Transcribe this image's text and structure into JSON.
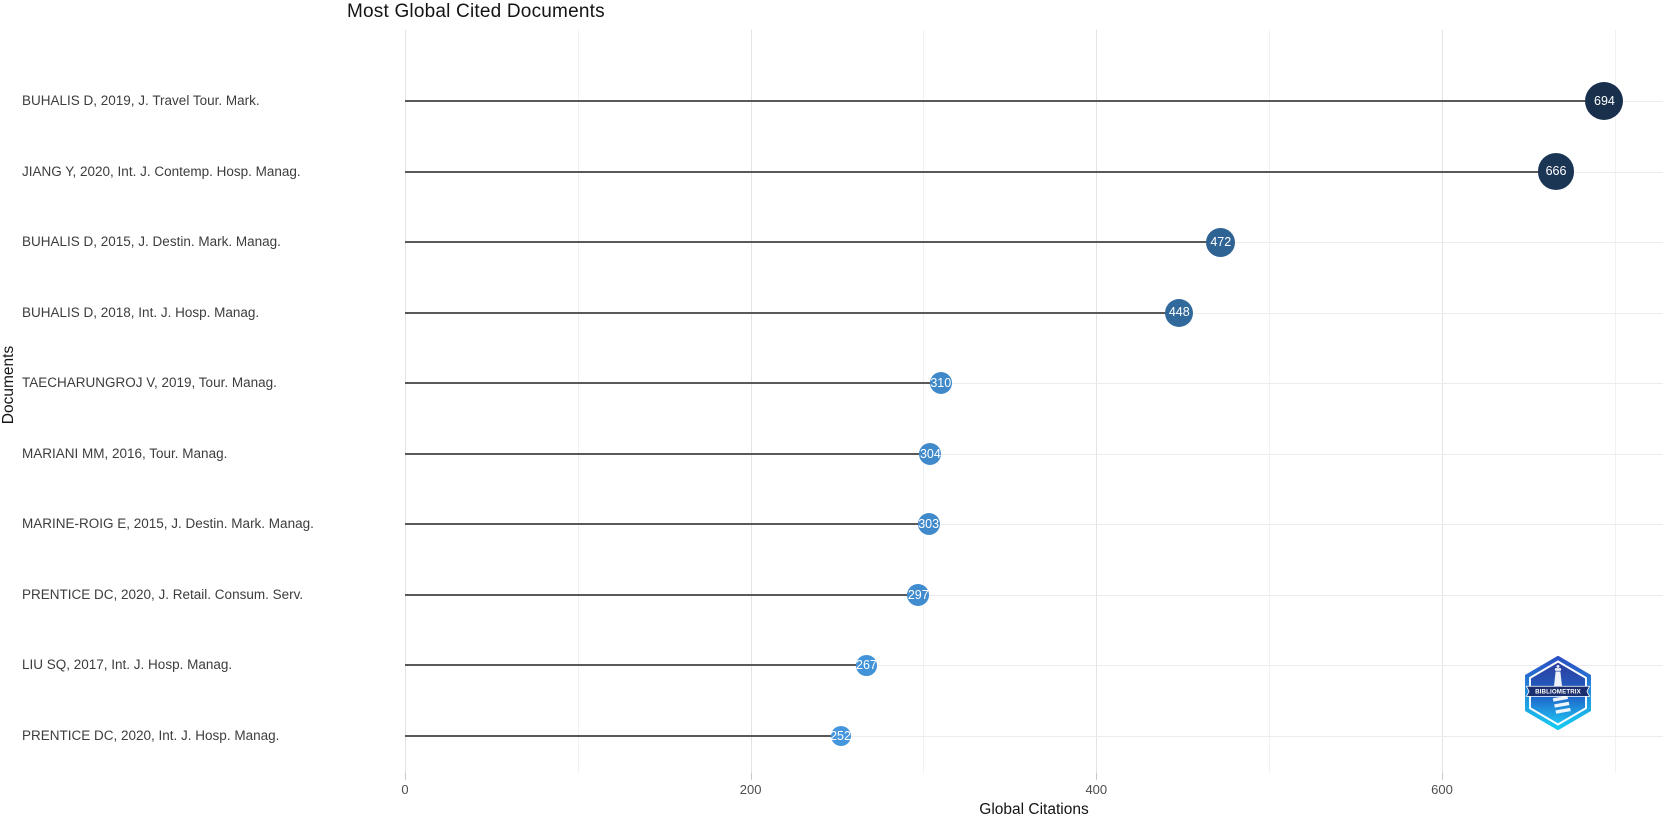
{
  "chart_data": {
    "type": "bar",
    "variant": "horizontal-lollipop",
    "orientation": "horizontal",
    "title": "Most Global Cited Documents",
    "xlabel": "Global Citations",
    "ylabel": "Documents",
    "categories": [
      "BUHALIS D, 2019, J. Travel Tour. Mark.",
      "JIANG Y, 2020, Int. J. Contemp. Hosp. Manag.",
      "BUHALIS D, 2015, J. Destin. Mark. Manag.",
      "BUHALIS D, 2018, Int. J. Hosp. Manag.",
      "TAECHARUNGROJ V, 2019, Tour. Manag.",
      "MARIANI MM, 2016, Tour. Manag.",
      "MARINE-ROIG E, 2015, J. Destin. Mark. Manag.",
      "PRENTICE DC, 2020, J. Retail. Consum. Serv.",
      "LIU SQ, 2017, Int. J. Hosp. Manag.",
      "PRENTICE DC, 2020, Int. J. Hosp. Manag."
    ],
    "values": [
      694,
      666,
      472,
      448,
      310,
      304,
      303,
      297,
      267,
      252
    ],
    "value_labels_shown": true,
    "xlim": [
      0,
      729
    ],
    "x_major_ticks": [
      0,
      200,
      400,
      600
    ],
    "x_minor_ticks": [
      100,
      300,
      500,
      700
    ],
    "grid": true,
    "legend": "none",
    "colors": {
      "dot_low": "#4596DD",
      "dot_high": "#18304B",
      "stem": "#595959",
      "grid_major": "#e3e3e3",
      "grid_minor": "#f1f1f1",
      "value_text": "#ffffff"
    }
  },
  "watermark": {
    "label": "BIBLIOMETRIX"
  }
}
